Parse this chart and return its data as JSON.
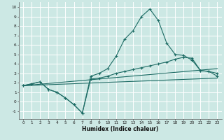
{
  "xlabel": "Humidex (Indice chaleur)",
  "xlim": [
    -0.5,
    23.5
  ],
  "ylim": [
    -1.8,
    10.5
  ],
  "yticks": [
    -1,
    0,
    1,
    2,
    3,
    4,
    5,
    6,
    7,
    8,
    9,
    10
  ],
  "xticks": [
    0,
    1,
    2,
    3,
    4,
    5,
    6,
    7,
    8,
    9,
    10,
    11,
    12,
    13,
    14,
    15,
    16,
    17,
    18,
    19,
    20,
    21,
    22,
    23
  ],
  "bg_color": "#cce8e4",
  "line_color": "#1c6b64",
  "grid_color": "#ffffff",
  "line1_x": [
    0,
    1,
    2,
    3,
    4,
    5,
    6,
    7,
    8,
    9,
    10,
    11,
    12,
    13,
    14,
    15,
    16,
    17,
    18,
    19,
    20,
    21,
    22,
    23
  ],
  "line1_y": [
    1.7,
    1.9,
    2.1,
    1.3,
    1.0,
    0.4,
    -0.3,
    -1.2,
    2.7,
    3.0,
    3.5,
    4.8,
    6.6,
    7.5,
    9.0,
    9.8,
    8.6,
    6.2,
    5.0,
    4.9,
    4.4,
    3.3,
    3.2,
    3.0
  ],
  "line2_x": [
    0,
    1,
    2,
    3,
    4,
    5,
    6,
    7,
    8,
    9,
    10,
    11,
    12,
    13,
    14,
    15,
    16,
    17,
    18,
    19,
    20,
    21,
    22,
    23
  ],
  "line2_y": [
    1.7,
    1.9,
    2.1,
    1.3,
    1.0,
    0.4,
    -0.3,
    -1.2,
    2.4,
    2.5,
    2.7,
    3.0,
    3.2,
    3.4,
    3.6,
    3.8,
    4.0,
    4.2,
    4.5,
    4.7,
    4.6,
    3.3,
    3.2,
    2.7
  ],
  "line3_x": [
    0,
    23
  ],
  "line3_y": [
    1.7,
    2.5
  ],
  "line4_x": [
    0,
    23
  ],
  "line4_y": [
    1.7,
    3.5
  ]
}
